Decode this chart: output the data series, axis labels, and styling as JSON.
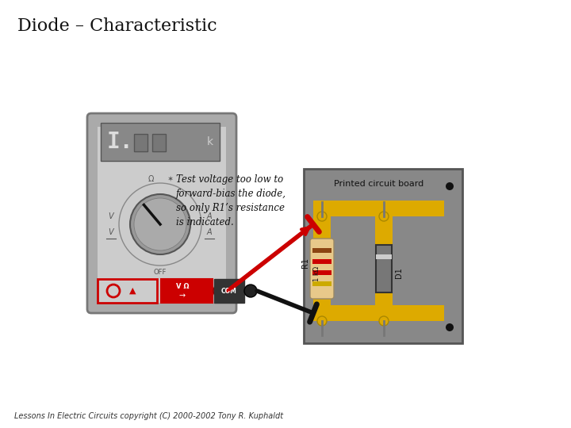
{
  "title": "Diode – Characteristic",
  "footer": "Lessons In Electric Circuits copyright (C) 2000-2002 Tony R. Kuphaldt",
  "annotation_text": "Test voltage too low to\nforward-bias the diode,\nso only R1’s resistance\nis indicated.",
  "pcb_label": "Printed circuit board",
  "bg_color": "#ffffff",
  "meter_body_color": "#aaaaaa",
  "meter_face_color": "#cccccc",
  "meter_display_color": "#888888",
  "pcb_board_color": "#888888",
  "pcb_trace_color": "#ddaa00",
  "resistor_body_color": "#e8c98a",
  "diode_body_color": "#777777",
  "wire_red_color": "#cc0000",
  "wire_black_color": "#111111"
}
